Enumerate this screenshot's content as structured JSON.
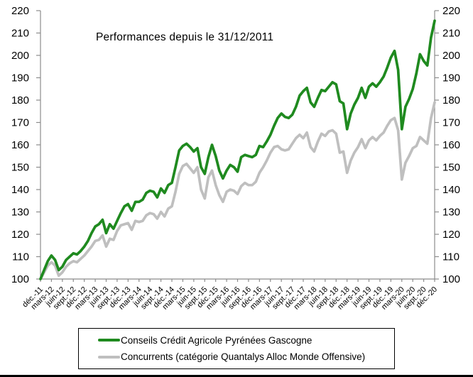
{
  "title": "Performances depuis le 31/12/2011",
  "legend": {
    "items_note": "legend labels bound from chart_data.series names"
  },
  "chart_data": {
    "type": "line",
    "title": "Performances depuis le 31/12/2011",
    "x_unit": "month",
    "x_range_note": "monthly points from déc.-11 to déc.-20, quarterly ticks",
    "x_tick_labels": [
      "déc.-11",
      "mars-12",
      "juin-12",
      "sept.-12",
      "déc.-12",
      "mars-13",
      "juin-13",
      "sept.-13",
      "déc.-13",
      "mars-14",
      "juin-14",
      "sept.-14",
      "déc.-14",
      "mars-15",
      "juin-15",
      "sept.-15",
      "déc.-15",
      "mars-16",
      "juin-16",
      "sept.-16",
      "déc.-16",
      "mars-17",
      "juin-17",
      "sept.-17",
      "déc.-17",
      "mars-18",
      "juin-18",
      "sept.-18",
      "déc.-18",
      "mars-19",
      "juin-19",
      "sept.-19",
      "déc.-19",
      "mars-20",
      "juin-20",
      "sept.-20",
      "déc.-20"
    ],
    "y_ticks": [
      100,
      110,
      120,
      130,
      140,
      150,
      160,
      170,
      180,
      190,
      200,
      210,
      220
    ],
    "ylim": [
      100,
      220
    ],
    "y_axis_sides": "both",
    "grid": false,
    "axis_color": "#8c8c8c",
    "legend_position": "bottom",
    "series": [
      {
        "name": "Conseils Crédit Agricole Pyrénées Gascogne",
        "color": "#1f8a1f",
        "values": [
          100,
          104,
          108,
          110.5,
          108.5,
          104,
          105.5,
          108.5,
          110,
          111.5,
          111,
          112.5,
          114.5,
          117,
          120.5,
          123.5,
          124.5,
          126.5,
          120.5,
          124.5,
          122.5,
          126,
          129.5,
          132.5,
          133.5,
          130.5,
          134.5,
          134.5,
          135.5,
          138.5,
          139.5,
          139,
          136.5,
          140.5,
          138.5,
          142,
          143,
          150,
          157.5,
          159.5,
          160.5,
          159,
          157,
          158.5,
          150,
          147,
          154.5,
          160,
          155,
          148.5,
          145,
          148.5,
          151,
          150,
          148,
          154.5,
          155.5,
          155,
          154.5,
          155.5,
          159.5,
          159,
          161.5,
          164.5,
          168.5,
          172,
          174,
          172.5,
          172,
          173.5,
          177,
          182,
          184,
          185.5,
          179,
          177,
          181,
          184.5,
          184,
          186,
          188,
          187,
          179.5,
          178.5,
          167,
          174,
          178,
          181,
          185.5,
          181,
          186,
          187.5,
          186,
          188,
          190.5,
          194.5,
          199,
          202,
          193.5,
          167,
          177,
          180.5,
          185,
          192,
          200.5,
          197.5,
          195.5,
          208,
          215.5
        ]
      },
      {
        "name": "Concurrents (catégorie Quantalys Alloc Monde Offensive)",
        "color": "#bfbfbf",
        "values": [
          100,
          103,
          106,
          107.5,
          106,
          101.5,
          103,
          105.5,
          107,
          108,
          107.5,
          109,
          110.5,
          112.5,
          114.5,
          117,
          117.5,
          119.5,
          114.5,
          118,
          117.5,
          121.5,
          124,
          124.5,
          125,
          122,
          126,
          125.5,
          126,
          128.5,
          129.5,
          129,
          127,
          130,
          128,
          131.5,
          132.5,
          139,
          147,
          150.5,
          151.5,
          149.5,
          147.5,
          150,
          140,
          136,
          145.5,
          148.5,
          142,
          137.5,
          134.5,
          139,
          140,
          139.5,
          138,
          141.5,
          143,
          142,
          142,
          143.5,
          147.5,
          150,
          153,
          156.5,
          159,
          159.5,
          158,
          157.5,
          158,
          160.5,
          163,
          164.5,
          163,
          165.5,
          159,
          157,
          161.5,
          165,
          164,
          166,
          166.5,
          165,
          156.5,
          157,
          147.5,
          153,
          156.5,
          159,
          162.5,
          158.5,
          162,
          163.5,
          162,
          164,
          165.5,
          168.5,
          171,
          172,
          166.5,
          144.5,
          152,
          155,
          158.5,
          159.5,
          163.5,
          162,
          160.5,
          172,
          179
        ]
      }
    ]
  }
}
